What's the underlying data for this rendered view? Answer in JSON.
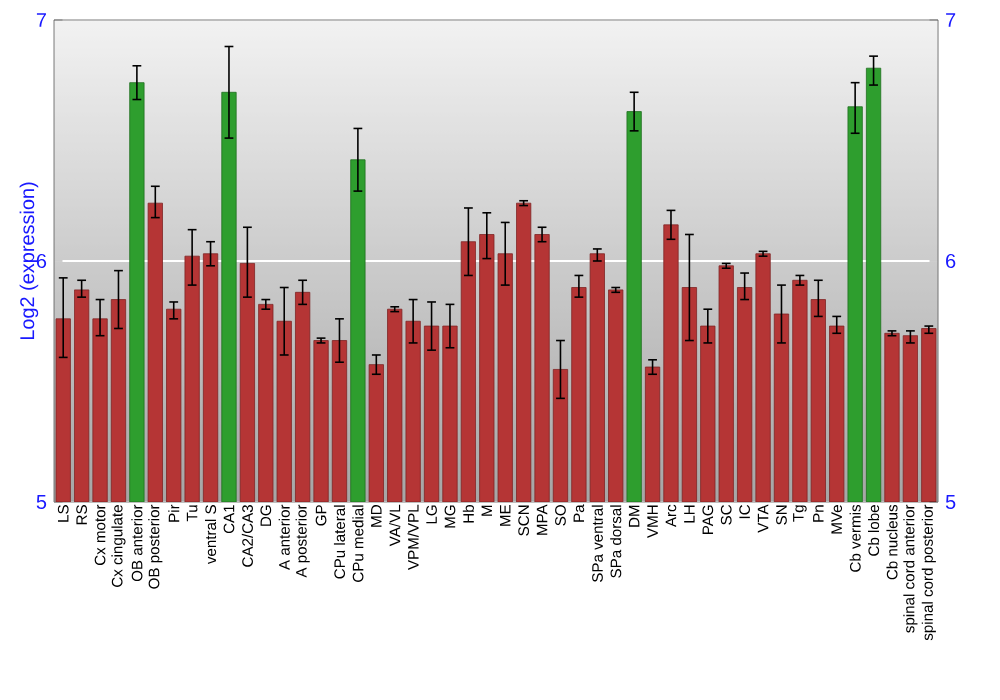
{
  "chart_data": {
    "type": "bar",
    "ylabel": "Log2 (expression)",
    "categories": [
      "LS",
      "RS",
      "Cx motor",
      "Cx cingulate",
      "OB anterior",
      "OB posterior",
      "Pir",
      "Tu",
      "ventral S",
      "CA1",
      "CA2/CA3",
      "DG",
      "A anterior",
      "A posterior",
      "GP",
      "CPu lateral",
      "CPu medial",
      "MD",
      "VA/VL",
      "VPM/VPL",
      "LG",
      "MG",
      "Hb",
      "M",
      "ME",
      "SCN",
      "MPA",
      "SO",
      "Pa",
      "SPa ventral",
      "SPa dorsal",
      "DM",
      "VMH",
      "Arc",
      "LH",
      "PAG",
      "SC",
      "IC",
      "VTA",
      "SN",
      "Tg",
      "Pn",
      "MVe",
      "Cb vermis",
      "Cb lobe",
      "Cb nucleus",
      "spinal cord anterior",
      "spinal cord posterior"
    ],
    "values": [
      5.76,
      5.88,
      5.76,
      5.84,
      6.74,
      6.24,
      5.8,
      6.02,
      6.03,
      6.7,
      5.99,
      5.82,
      5.75,
      5.87,
      5.67,
      5.67,
      6.42,
      5.57,
      5.8,
      5.75,
      5.73,
      5.73,
      6.08,
      6.11,
      6.03,
      6.24,
      6.11,
      5.55,
      5.89,
      6.03,
      5.88,
      6.62,
      5.56,
      6.15,
      5.89,
      5.73,
      5.98,
      5.89,
      6.03,
      5.78,
      5.92,
      5.84,
      5.73,
      6.64,
      6.8,
      5.7,
      5.69,
      5.72
    ],
    "errors": [
      [
        5.6,
        5.93
      ],
      [
        5.85,
        5.92
      ],
      [
        5.69,
        5.84
      ],
      [
        5.72,
        5.96
      ],
      [
        6.67,
        6.81
      ],
      [
        6.18,
        6.31
      ],
      [
        5.76,
        5.83
      ],
      [
        5.9,
        6.13
      ],
      [
        5.98,
        6.08
      ],
      [
        6.51,
        6.89
      ],
      [
        5.85,
        6.14
      ],
      [
        5.8,
        5.84
      ],
      [
        5.61,
        5.89
      ],
      [
        5.82,
        5.92
      ],
      [
        5.66,
        5.68
      ],
      [
        5.58,
        5.76
      ],
      [
        6.29,
        6.55
      ],
      [
        5.53,
        5.61
      ],
      [
        5.79,
        5.81
      ],
      [
        5.66,
        5.84
      ],
      [
        5.63,
        5.83
      ],
      [
        5.64,
        5.82
      ],
      [
        5.94,
        6.22
      ],
      [
        6.01,
        6.2
      ],
      [
        5.9,
        6.16
      ],
      [
        6.23,
        6.25
      ],
      [
        6.08,
        6.14
      ],
      [
        5.43,
        5.67
      ],
      [
        5.85,
        5.94
      ],
      [
        6.0,
        6.05
      ],
      [
        5.87,
        5.89
      ],
      [
        6.54,
        6.7
      ],
      [
        5.53,
        5.59
      ],
      [
        6.09,
        6.21
      ],
      [
        5.67,
        6.11
      ],
      [
        5.66,
        5.8
      ],
      [
        5.97,
        5.99
      ],
      [
        5.84,
        5.95
      ],
      [
        6.02,
        6.04
      ],
      [
        5.66,
        5.9
      ],
      [
        5.9,
        5.94
      ],
      [
        5.77,
        5.92
      ],
      [
        5.7,
        5.77
      ],
      [
        6.53,
        6.74
      ],
      [
        6.73,
        6.85
      ],
      [
        5.69,
        5.71
      ],
      [
        5.66,
        5.71
      ],
      [
        5.7,
        5.73
      ]
    ],
    "colors": [
      "#b53535",
      "#b53535",
      "#b53535",
      "#b53535",
      "#2e9e2e",
      "#b53535",
      "#b53535",
      "#b53535",
      "#b53535",
      "#2e9e2e",
      "#b53535",
      "#b53535",
      "#b53535",
      "#b53535",
      "#b53535",
      "#b53535",
      "#2e9e2e",
      "#b53535",
      "#b53535",
      "#b53535",
      "#b53535",
      "#b53535",
      "#b53535",
      "#b53535",
      "#b53535",
      "#b53535",
      "#b53535",
      "#b53535",
      "#b53535",
      "#b53535",
      "#b53535",
      "#2e9e2e",
      "#b53535",
      "#b53535",
      "#b53535",
      "#b53535",
      "#b53535",
      "#b53535",
      "#b53535",
      "#b53535",
      "#b53535",
      "#b53535",
      "#b53535",
      "#2e9e2e",
      "#2e9e2e",
      "#b53535",
      "#b53535",
      "#b53535"
    ],
    "ylim": [
      5,
      7
    ],
    "yticks": [
      5,
      6,
      7
    ],
    "y2lim": [
      5,
      7
    ],
    "y2ticks": [
      5,
      6,
      7
    ],
    "grid": "y"
  }
}
